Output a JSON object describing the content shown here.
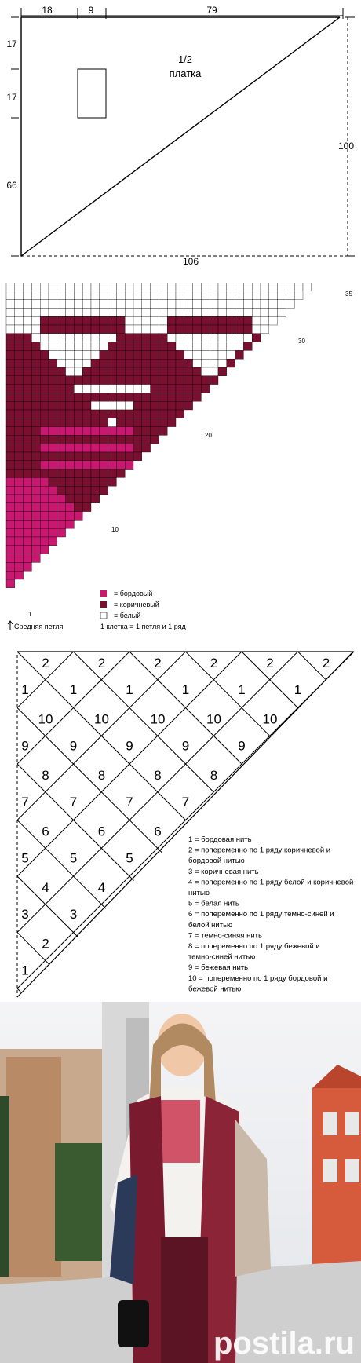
{
  "schema": {
    "dims_top": [
      "18",
      "9",
      "79"
    ],
    "dims_left": [
      "17",
      "17",
      "66"
    ],
    "dim_right": "100",
    "dim_bottom": "106",
    "label_line1": "1/2",
    "label_line2": "платка"
  },
  "chart": {
    "row_labels": [
      "1",
      "10",
      "20",
      "30",
      "35"
    ],
    "colors": {
      "bordo": "#c8186f",
      "brown": "#7a1030",
      "white": "#ffffff"
    },
    "legend": [
      {
        "swatch": "bordo",
        "text": "= бордовый"
      },
      {
        "swatch": "brown",
        "text": "= коричневый"
      },
      {
        "swatch": "white",
        "text": "= белый"
      }
    ],
    "legend_note": "1 клетка = 1 петля и 1 ряд",
    "middle_loop": "Средняя петля"
  },
  "rhombus": {
    "rows": [
      [
        "2",
        "2",
        "2",
        "2",
        "2",
        "2"
      ],
      [
        "10",
        "10",
        "10",
        "10",
        "10"
      ],
      [
        "8",
        "8",
        "8",
        "8"
      ],
      [
        "6",
        "6",
        "6"
      ],
      [
        "4",
        "4"
      ],
      [
        "2"
      ]
    ],
    "rows_odd": [
      [
        "1",
        "1",
        "1",
        "1",
        "1",
        "1"
      ],
      [
        "9",
        "9",
        "9",
        "9",
        "9"
      ],
      [
        "7",
        "7",
        "7",
        "7"
      ],
      [
        "5",
        "5",
        "5"
      ],
      [
        "3",
        "3"
      ],
      [
        "1"
      ]
    ],
    "legend": [
      "1 = бордовая нить",
      "2 = попеременно по 1 ряду коричневой и бордовой нитью",
      "3 = коричневая нить",
      "4 = попеременно по 1 ряду белой и коричневой нитью",
      "5 = белая нить",
      "6 = попеременно по 1 ряду темно-синей и белой нитью",
      "7 = темно-синяя нить",
      "8 = попеременно по 1 ряду бежевой и темно-синей нитью",
      "9 = бежевая нить",
      "10 = попеременно по 1 ряду бордовой и бежевой нитью"
    ]
  },
  "photo": {
    "watermark": "postila.ru"
  }
}
